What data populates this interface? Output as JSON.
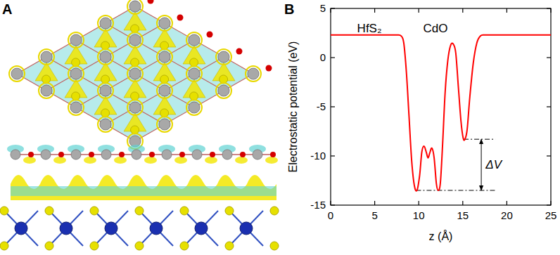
{
  "panel_labels": [
    "A",
    "B"
  ],
  "chart_data": {
    "type": "line",
    "x_label": "z (Å)",
    "y_label": "Electrostatic potential (eV)",
    "x": [
      0,
      2,
      4,
      6,
      7.5,
      8.0,
      8.3,
      8.6,
      8.9,
      9.2,
      9.5,
      9.8,
      10.1,
      10.35,
      10.6,
      10.85,
      11.05,
      11.25,
      11.5,
      11.75,
      12.0,
      12.2,
      12.45,
      12.7,
      13.0,
      13.3,
      13.6,
      13.9,
      14.2,
      14.5,
      14.8,
      15.05,
      15.25,
      15.5,
      15.8,
      16.2,
      16.6,
      17.0,
      17.5,
      19,
      21,
      23,
      25
    ],
    "values": [
      2.3,
      2.3,
      2.3,
      2.3,
      2.3,
      2.2,
      1.5,
      -1.5,
      -6,
      -10.5,
      -13,
      -13.5,
      -12,
      -9.6,
      -9.0,
      -9.6,
      -10.2,
      -9.7,
      -9.2,
      -10.2,
      -12.8,
      -13.5,
      -12.8,
      -9,
      -3.5,
      -0.3,
      1.2,
      1.4,
      0.5,
      -3,
      -6.5,
      -8.2,
      -8.3,
      -7.3,
      -4,
      -0.5,
      1.5,
      2.2,
      2.3,
      2.3,
      2.3,
      2.3,
      2.3
    ],
    "color": "#ff0000",
    "xlim": [
      0,
      25
    ],
    "xticks": [
      0,
      5,
      10,
      15,
      20,
      25
    ],
    "ylim": [
      -15,
      5
    ],
    "yticks": [
      -15,
      -10,
      -5,
      0,
      5
    ],
    "annotations": [
      {
        "text": "HfS₂",
        "x": 4.4,
        "y": 2.6
      },
      {
        "text": "CdO",
        "x": 11.9,
        "y": 2.6
      },
      {
        "text": "ΔV",
        "x": 17.6,
        "y": -11.3
      }
    ],
    "reference_lines": [
      {
        "y": -13.5,
        "x": [
          9.7,
          18.7
        ]
      },
      {
        "y": -8.3,
        "x": [
          15.1,
          18.7
        ]
      }
    ],
    "arrows": [
      {
        "x": 17.1,
        "y": [
          -8.3,
          -13.5
        ]
      }
    ]
  }
}
